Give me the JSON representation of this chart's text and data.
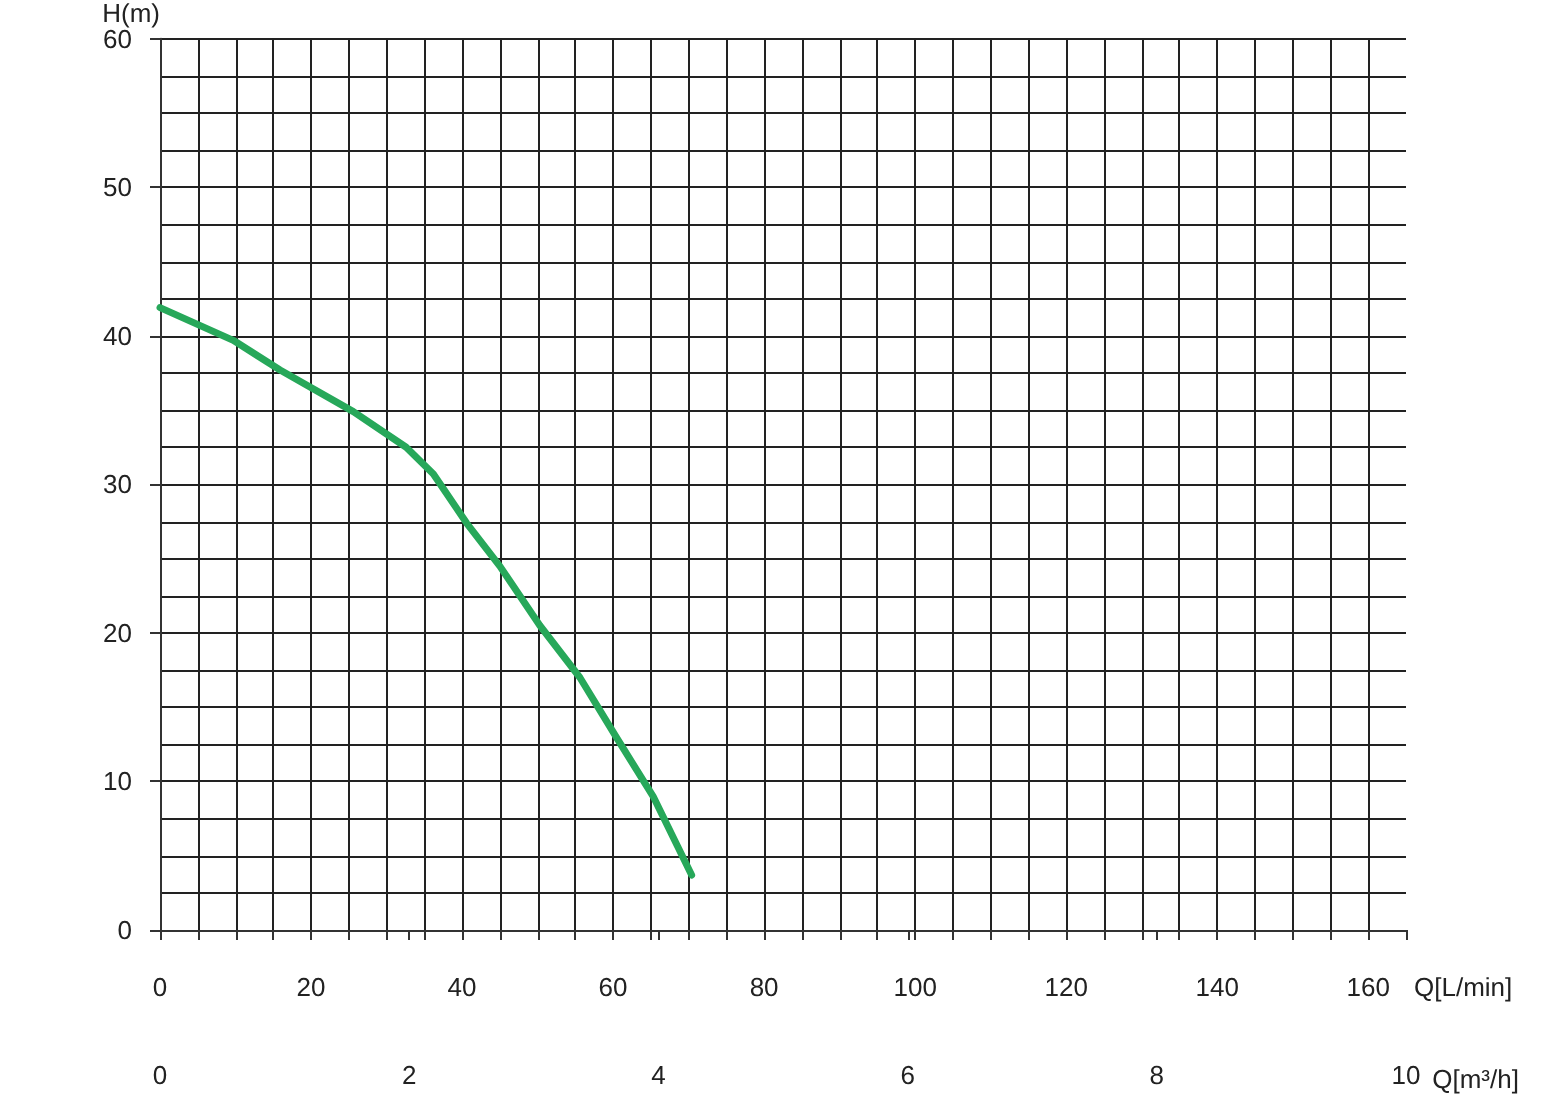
{
  "chart_data": {
    "type": "line",
    "xlabel": "Q[L/min]",
    "ylabel": "H(m)",
    "x2label": "Q[m³/h]",
    "xlim": [
      0,
      165
    ],
    "xticks": [
      0,
      {
        "value": 5,
        "label": null
      },
      {
        "value": 10,
        "label": null
      },
      {
        "value": 15,
        "label": null
      },
      20,
      {
        "value": 25,
        "label": null
      },
      {
        "value": 30,
        "label": null
      },
      {
        "value": 35,
        "label": null
      },
      40,
      {
        "value": 45,
        "label": null
      },
      {
        "value": 50,
        "label": null
      },
      {
        "value": 55,
        "label": null
      },
      60,
      {
        "value": 65,
        "label": null
      },
      {
        "value": 70,
        "label": null
      },
      {
        "value": 75,
        "label": null
      },
      80,
      {
        "value": 85,
        "label": null
      },
      {
        "value": 90,
        "label": null
      },
      {
        "value": 95,
        "label": null
      },
      100,
      {
        "value": 105,
        "label": null
      },
      {
        "value": 110,
        "label": null
      },
      {
        "value": 115,
        "label": null
      },
      120,
      {
        "value": 125,
        "label": null
      },
      {
        "value": 130,
        "label": null
      },
      {
        "value": 135,
        "label": null
      },
      140,
      {
        "value": 145,
        "label": null
      },
      {
        "value": 150,
        "label": null
      },
      {
        "value": 155,
        "label": null
      },
      160
    ],
    "x2lim": [
      0,
      10
    ],
    "x2ticks": [
      0,
      2,
      4,
      6,
      8,
      10
    ],
    "ylim": [
      0,
      60
    ],
    "yticks": [
      0,
      {
        "value": 2.5,
        "label": null
      },
      {
        "value": 5,
        "label": null
      },
      {
        "value": 7.5,
        "label": null
      },
      10,
      {
        "value": 12.5,
        "label": null
      },
      {
        "value": 15,
        "label": null
      },
      {
        "value": 17.5,
        "label": null
      },
      20,
      {
        "value": 22.5,
        "label": null
      },
      {
        "value": 25,
        "label": null
      },
      {
        "value": 27.5,
        "label": null
      },
      30,
      {
        "value": 32.5,
        "label": null
      },
      {
        "value": 35,
        "label": null
      },
      {
        "value": 37.5,
        "label": null
      },
      40,
      {
        "value": 42.5,
        "label": null
      },
      {
        "value": 45,
        "label": null
      },
      {
        "value": 47.5,
        "label": null
      },
      50,
      {
        "value": 52.5,
        "label": null
      },
      {
        "value": 55,
        "label": null
      },
      {
        "value": 57.5,
        "label": null
      },
      60
    ],
    "grid": true,
    "marker": "none",
    "line_style": "solid",
    "x": [
      0,
      9.7,
      15.9,
      25.6,
      32.6,
      36.2,
      40.6,
      45,
      50.3,
      55.6,
      60.4,
      65.3,
      70.4
    ],
    "series": [
      {
        "color": "#27a85a",
        "values": [
          41.9,
          39.7,
          37.7,
          34.9,
          32.5,
          30.7,
          27.4,
          24.5,
          20.5,
          17.0,
          13.0,
          9.0,
          3.7
        ]
      }
    ]
  }
}
